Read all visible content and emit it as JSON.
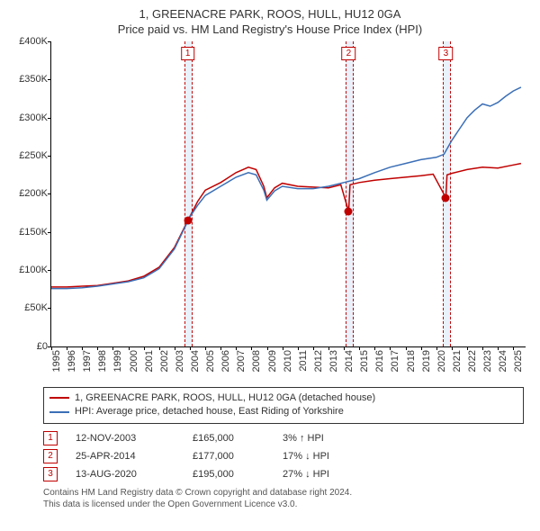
{
  "title": {
    "line1": "1, GREENACRE PARK, ROOS, HULL, HU12 0GA",
    "line2": "Price paid vs. HM Land Registry's House Price Index (HPI)",
    "fontsize": 13,
    "color": "#333333"
  },
  "chart": {
    "type": "line",
    "background_color": "#ffffff",
    "axis_color": "#000000",
    "highlight_band_color": "#eaf1fa",
    "highlight_border_color": "#c00000",
    "y_axis": {
      "min": 0,
      "max": 400000,
      "tick_step": 50000,
      "ticks": [
        {
          "value": 0,
          "label": "£0"
        },
        {
          "value": 50000,
          "label": "£50K"
        },
        {
          "value": 100000,
          "label": "£100K"
        },
        {
          "value": 150000,
          "label": "£150K"
        },
        {
          "value": 200000,
          "label": "£200K"
        },
        {
          "value": 250000,
          "label": "£250K"
        },
        {
          "value": 300000,
          "label": "£300K"
        },
        {
          "value": 350000,
          "label": "£350K"
        },
        {
          "value": 400000,
          "label": "£400K"
        }
      ],
      "label_fontsize": 11
    },
    "x_axis": {
      "min": 1995,
      "max": 2025.8,
      "ticks": [
        "1995",
        "1996",
        "1997",
        "1998",
        "1999",
        "2000",
        "2001",
        "2002",
        "2003",
        "2004",
        "2005",
        "2006",
        "2007",
        "2008",
        "2009",
        "2010",
        "2011",
        "2012",
        "2013",
        "2014",
        "2015",
        "2016",
        "2017",
        "2018",
        "2019",
        "2020",
        "2021",
        "2022",
        "2023",
        "2024",
        "2025"
      ],
      "label_fontsize": 11,
      "label_rotation": -90
    },
    "highlights": [
      {
        "num": "1",
        "x": 2003.86,
        "width_years": 0.45
      },
      {
        "num": "2",
        "x": 2014.31,
        "width_years": 0.45
      },
      {
        "num": "3",
        "x": 2020.62,
        "width_years": 0.45
      }
    ],
    "series": [
      {
        "name": "subject",
        "label": "1, GREENACRE PARK, ROOS, HULL, HU12 0GA (detached house)",
        "color": "#c00000",
        "line_width": 1.5,
        "points": [
          [
            1995,
            78000
          ],
          [
            1996,
            78000
          ],
          [
            1997,
            79000
          ],
          [
            1998,
            80000
          ],
          [
            1999,
            83000
          ],
          [
            2000,
            86000
          ],
          [
            2001,
            92000
          ],
          [
            2002,
            104000
          ],
          [
            2003,
            130000
          ],
          [
            2003.86,
            165000
          ],
          [
            2004.5,
            190000
          ],
          [
            2005,
            205000
          ],
          [
            2006,
            215000
          ],
          [
            2007,
            228000
          ],
          [
            2007.8,
            235000
          ],
          [
            2008.3,
            232000
          ],
          [
            2008.8,
            210000
          ],
          [
            2009,
            195000
          ],
          [
            2009.5,
            208000
          ],
          [
            2010,
            214000
          ],
          [
            2011,
            210000
          ],
          [
            2012,
            209000
          ],
          [
            2013,
            208000
          ],
          [
            2013.8,
            212000
          ],
          [
            2014.31,
            177000
          ],
          [
            2014.4,
            212000
          ],
          [
            2015,
            215000
          ],
          [
            2016,
            218000
          ],
          [
            2017,
            220000
          ],
          [
            2018,
            222000
          ],
          [
            2019,
            224000
          ],
          [
            2019.8,
            226000
          ],
          [
            2020.62,
            195000
          ],
          [
            2020.7,
            225000
          ],
          [
            2021,
            227000
          ],
          [
            2022,
            232000
          ],
          [
            2023,
            235000
          ],
          [
            2024,
            234000
          ],
          [
            2025,
            238000
          ],
          [
            2025.5,
            240000
          ]
        ]
      },
      {
        "name": "hpi",
        "label": "HPI: Average price, detached house, East Riding of Yorkshire",
        "color": "#3b6fb6",
        "line_width": 1.5,
        "points": [
          [
            1995,
            76000
          ],
          [
            1996,
            76000
          ],
          [
            1997,
            77000
          ],
          [
            1998,
            79000
          ],
          [
            1999,
            82000
          ],
          [
            2000,
            85000
          ],
          [
            2001,
            90000
          ],
          [
            2002,
            102000
          ],
          [
            2003,
            128000
          ],
          [
            2004,
            170000
          ],
          [
            2004.5,
            185000
          ],
          [
            2005,
            198000
          ],
          [
            2006,
            210000
          ],
          [
            2007,
            222000
          ],
          [
            2007.8,
            228000
          ],
          [
            2008.3,
            225000
          ],
          [
            2008.8,
            205000
          ],
          [
            2009,
            192000
          ],
          [
            2009.5,
            204000
          ],
          [
            2010,
            210000
          ],
          [
            2011,
            207000
          ],
          [
            2012,
            207000
          ],
          [
            2013,
            210000
          ],
          [
            2014,
            215000
          ],
          [
            2015,
            220000
          ],
          [
            2016,
            228000
          ],
          [
            2017,
            235000
          ],
          [
            2018,
            240000
          ],
          [
            2019,
            245000
          ],
          [
            2020,
            248000
          ],
          [
            2020.5,
            252000
          ],
          [
            2021,
            270000
          ],
          [
            2021.5,
            285000
          ],
          [
            2022,
            300000
          ],
          [
            2022.5,
            310000
          ],
          [
            2023,
            318000
          ],
          [
            2023.5,
            315000
          ],
          [
            2024,
            320000
          ],
          [
            2024.5,
            328000
          ],
          [
            2025,
            335000
          ],
          [
            2025.5,
            340000
          ]
        ]
      }
    ],
    "markers": [
      {
        "x": 2003.86,
        "y": 165000,
        "color": "#c00000"
      },
      {
        "x": 2014.31,
        "y": 177000,
        "color": "#c00000"
      },
      {
        "x": 2020.62,
        "y": 195000,
        "color": "#c00000"
      }
    ]
  },
  "legend": {
    "border_color": "#333333",
    "fontsize": 11
  },
  "sales": [
    {
      "num": "1",
      "date": "12-NOV-2003",
      "price": "£165,000",
      "delta": "3% ↑ HPI"
    },
    {
      "num": "2",
      "date": "25-APR-2014",
      "price": "£177,000",
      "delta": "17% ↓ HPI"
    },
    {
      "num": "3",
      "date": "13-AUG-2020",
      "price": "£195,000",
      "delta": "27% ↓ HPI"
    }
  ],
  "attribution": {
    "line1": "Contains HM Land Registry data © Crown copyright and database right 2024.",
    "line2": "This data is licensed under the Open Government Licence v3.0.",
    "color": "#555555",
    "fontsize": 10
  }
}
